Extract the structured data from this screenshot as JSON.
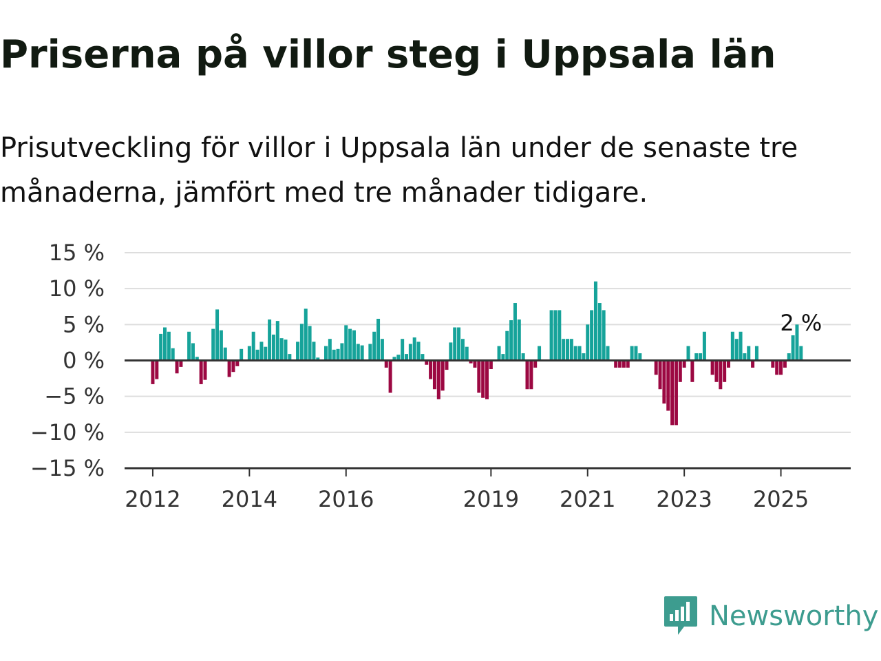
{
  "title": "Priserna på villor steg i Uppsala län",
  "subtitle": "Prisutveckling för villor i Uppsala län under de senaste tre månaderna, jämfört med tre månader tidigare.",
  "brand": {
    "name": "Newsworthy",
    "icon": "newsworthy-logo-icon",
    "color": "#3d9c8f"
  },
  "colors": {
    "positive": "#16a39a",
    "negative": "#9c0842",
    "grid": "#dddddd",
    "axis": "#333333"
  },
  "chart_data": {
    "type": "bar",
    "y_ticks": [
      {
        "value": 15,
        "label": "15 %"
      },
      {
        "value": 10,
        "label": "10 %"
      },
      {
        "value": 5,
        "label": "5 %"
      },
      {
        "value": 0,
        "label": "0 %"
      },
      {
        "value": -5,
        "label": "−5 %"
      },
      {
        "value": -10,
        "label": "−10 %"
      },
      {
        "value": -15,
        "label": "−15 %"
      }
    ],
    "ylim": [
      -15,
      15
    ],
    "x_start": "2011-06",
    "x_end": "2026-01",
    "x_ticks": [
      {
        "date": "2012-01",
        "label": "2012"
      },
      {
        "date": "2014-01",
        "label": "2014"
      },
      {
        "date": "2016-01",
        "label": "2016"
      },
      {
        "date": "2019-01",
        "label": "2019"
      },
      {
        "date": "2021-01",
        "label": "2021"
      },
      {
        "date": "2023-01",
        "label": "2023"
      },
      {
        "date": "2025-01",
        "label": "2025"
      }
    ],
    "grid": true,
    "series": [
      {
        "values": [
          {
            "x": "2012-01",
            "y": -3.3
          },
          {
            "x": "2012-02",
            "y": -2.6
          },
          {
            "x": "2012-03",
            "y": 3.7
          },
          {
            "x": "2012-04",
            "y": 4.6
          },
          {
            "x": "2012-05",
            "y": 4.0
          },
          {
            "x": "2012-06",
            "y": 1.7
          },
          {
            "x": "2012-07",
            "y": -1.8
          },
          {
            "x": "2012-08",
            "y": -0.9
          },
          {
            "x": "2012-10",
            "y": 4.0
          },
          {
            "x": "2012-11",
            "y": 2.4
          },
          {
            "x": "2012-12",
            "y": 0.5
          },
          {
            "x": "2013-01",
            "y": -3.3
          },
          {
            "x": "2013-02",
            "y": -2.7
          },
          {
            "x": "2013-04",
            "y": 4.4
          },
          {
            "x": "2013-05",
            "y": 7.1
          },
          {
            "x": "2013-06",
            "y": 4.2
          },
          {
            "x": "2013-07",
            "y": 1.8
          },
          {
            "x": "2013-08",
            "y": -2.3
          },
          {
            "x": "2013-09",
            "y": -1.6
          },
          {
            "x": "2013-10",
            "y": -0.8
          },
          {
            "x": "2013-11",
            "y": 1.6
          },
          {
            "x": "2014-01",
            "y": 2.0
          },
          {
            "x": "2014-02",
            "y": 4.0
          },
          {
            "x": "2014-03",
            "y": 1.5
          },
          {
            "x": "2014-04",
            "y": 2.6
          },
          {
            "x": "2014-05",
            "y": 1.9
          },
          {
            "x": "2014-06",
            "y": 5.7
          },
          {
            "x": "2014-07",
            "y": 3.6
          },
          {
            "x": "2014-08",
            "y": 5.5
          },
          {
            "x": "2014-09",
            "y": 3.1
          },
          {
            "x": "2014-10",
            "y": 2.9
          },
          {
            "x": "2014-11",
            "y": 0.9
          },
          {
            "x": "2015-01",
            "y": 2.6
          },
          {
            "x": "2015-02",
            "y": 5.1
          },
          {
            "x": "2015-03",
            "y": 7.2
          },
          {
            "x": "2015-04",
            "y": 4.8
          },
          {
            "x": "2015-05",
            "y": 2.6
          },
          {
            "x": "2015-06",
            "y": 0.4
          },
          {
            "x": "2015-08",
            "y": 2.0
          },
          {
            "x": "2015-09",
            "y": 3.0
          },
          {
            "x": "2015-10",
            "y": 1.5
          },
          {
            "x": "2015-11",
            "y": 1.6
          },
          {
            "x": "2015-12",
            "y": 2.4
          },
          {
            "x": "2016-01",
            "y": 4.9
          },
          {
            "x": "2016-02",
            "y": 4.4
          },
          {
            "x": "2016-03",
            "y": 4.2
          },
          {
            "x": "2016-04",
            "y": 2.3
          },
          {
            "x": "2016-05",
            "y": 2.1
          },
          {
            "x": "2016-07",
            "y": 2.3
          },
          {
            "x": "2016-08",
            "y": 4.0
          },
          {
            "x": "2016-09",
            "y": 5.8
          },
          {
            "x": "2016-10",
            "y": 3.0
          },
          {
            "x": "2016-11",
            "y": -1.0
          },
          {
            "x": "2016-12",
            "y": -4.5
          },
          {
            "x": "2017-01",
            "y": 0.5
          },
          {
            "x": "2017-02",
            "y": 0.8
          },
          {
            "x": "2017-03",
            "y": 3.0
          },
          {
            "x": "2017-04",
            "y": 0.9
          },
          {
            "x": "2017-05",
            "y": 2.3
          },
          {
            "x": "2017-06",
            "y": 3.2
          },
          {
            "x": "2017-07",
            "y": 2.6
          },
          {
            "x": "2017-08",
            "y": 0.9
          },
          {
            "x": "2017-09",
            "y": -0.6
          },
          {
            "x": "2017-10",
            "y": -2.6
          },
          {
            "x": "2017-11",
            "y": -4.0
          },
          {
            "x": "2017-12",
            "y": -5.4
          },
          {
            "x": "2018-01",
            "y": -4.2
          },
          {
            "x": "2018-02",
            "y": -1.3
          },
          {
            "x": "2018-03",
            "y": 2.5
          },
          {
            "x": "2018-04",
            "y": 4.6
          },
          {
            "x": "2018-05",
            "y": 4.6
          },
          {
            "x": "2018-06",
            "y": 3.0
          },
          {
            "x": "2018-07",
            "y": 1.9
          },
          {
            "x": "2018-08",
            "y": -0.4
          },
          {
            "x": "2018-09",
            "y": -1.0
          },
          {
            "x": "2018-10",
            "y": -4.5
          },
          {
            "x": "2018-11",
            "y": -5.2
          },
          {
            "x": "2018-12",
            "y": -5.4
          },
          {
            "x": "2019-01",
            "y": -1.2
          },
          {
            "x": "2019-03",
            "y": 2.0
          },
          {
            "x": "2019-04",
            "y": 0.9
          },
          {
            "x": "2019-05",
            "y": 4.1
          },
          {
            "x": "2019-06",
            "y": 5.6
          },
          {
            "x": "2019-07",
            "y": 8.0
          },
          {
            "x": "2019-08",
            "y": 5.7
          },
          {
            "x": "2019-09",
            "y": 1.0
          },
          {
            "x": "2019-10",
            "y": -4.0
          },
          {
            "x": "2019-11",
            "y": -4.0
          },
          {
            "x": "2019-12",
            "y": -1.0
          },
          {
            "x": "2020-01",
            "y": 2.0
          },
          {
            "x": "2020-04",
            "y": 7.0
          },
          {
            "x": "2020-05",
            "y": 7.0
          },
          {
            "x": "2020-06",
            "y": 7.0
          },
          {
            "x": "2020-07",
            "y": 3.0
          },
          {
            "x": "2020-08",
            "y": 3.0
          },
          {
            "x": "2020-09",
            "y": 3.0
          },
          {
            "x": "2020-10",
            "y": 2.0
          },
          {
            "x": "2020-11",
            "y": 2.0
          },
          {
            "x": "2020-12",
            "y": 1.0
          },
          {
            "x": "2021-01",
            "y": 5.0
          },
          {
            "x": "2021-02",
            "y": 7.0
          },
          {
            "x": "2021-03",
            "y": 11.0
          },
          {
            "x": "2021-04",
            "y": 8.0
          },
          {
            "x": "2021-05",
            "y": 7.0
          },
          {
            "x": "2021-06",
            "y": 2.0
          },
          {
            "x": "2021-08",
            "y": -1.0
          },
          {
            "x": "2021-09",
            "y": -1.0
          },
          {
            "x": "2021-10",
            "y": -1.0
          },
          {
            "x": "2021-11",
            "y": -1.0
          },
          {
            "x": "2021-12",
            "y": 2.0
          },
          {
            "x": "2022-01",
            "y": 2.0
          },
          {
            "x": "2022-02",
            "y": 1.0
          },
          {
            "x": "2022-06",
            "y": -2.0
          },
          {
            "x": "2022-07",
            "y": -4.0
          },
          {
            "x": "2022-08",
            "y": -6.0
          },
          {
            "x": "2022-09",
            "y": -7.0
          },
          {
            "x": "2022-10",
            "y": -9.0
          },
          {
            "x": "2022-11",
            "y": -9.0
          },
          {
            "x": "2022-12",
            "y": -3.0
          },
          {
            "x": "2023-01",
            "y": -1.0
          },
          {
            "x": "2023-02",
            "y": 2.0
          },
          {
            "x": "2023-03",
            "y": -3.0
          },
          {
            "x": "2023-04",
            "y": 1.0
          },
          {
            "x": "2023-05",
            "y": 1.0
          },
          {
            "x": "2023-06",
            "y": 4.0
          },
          {
            "x": "2023-08",
            "y": -2.0
          },
          {
            "x": "2023-09",
            "y": -3.0
          },
          {
            "x": "2023-10",
            "y": -4.0
          },
          {
            "x": "2023-11",
            "y": -3.0
          },
          {
            "x": "2023-12",
            "y": -1.0
          },
          {
            "x": "2024-01",
            "y": 4.0
          },
          {
            "x": "2024-02",
            "y": 3.0
          },
          {
            "x": "2024-03",
            "y": 4.0
          },
          {
            "x": "2024-04",
            "y": 1.0
          },
          {
            "x": "2024-05",
            "y": 2.0
          },
          {
            "x": "2024-06",
            "y": -1.0
          },
          {
            "x": "2024-07",
            "y": 2.0
          },
          {
            "x": "2024-11",
            "y": -1.0
          },
          {
            "x": "2024-12",
            "y": -2.0
          },
          {
            "x": "2025-01",
            "y": -2.0
          },
          {
            "x": "2025-02",
            "y": -1.0
          },
          {
            "x": "2025-03",
            "y": 1.0
          },
          {
            "x": "2025-04",
            "y": 3.5
          },
          {
            "x": "2025-05",
            "y": 5.0
          },
          {
            "x": "2025-06",
            "y": 2.0
          }
        ]
      }
    ],
    "annotations": [
      {
        "x": "2025-06",
        "text": "2 %"
      }
    ]
  }
}
